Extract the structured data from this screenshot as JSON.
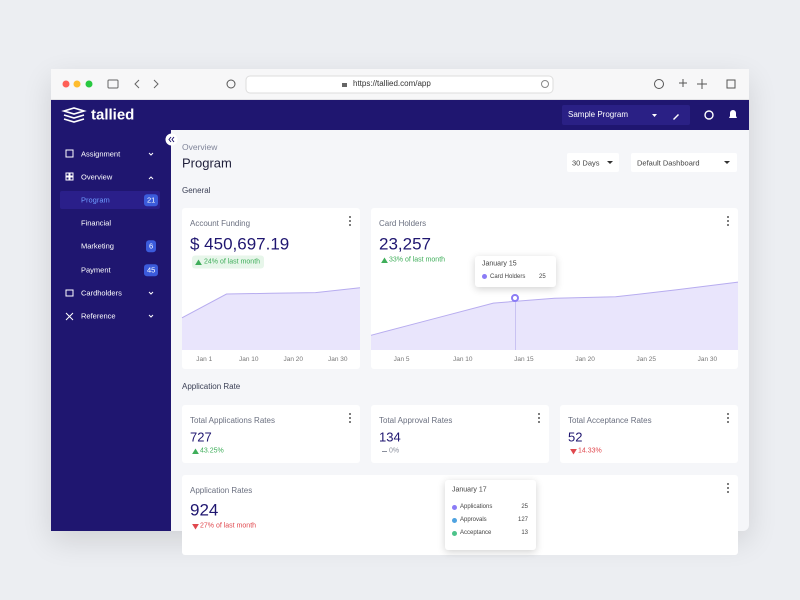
{
  "browser": {
    "url": "https://tallied.com/app"
  },
  "header": {
    "brand": "tallied",
    "program": "Sample Program"
  },
  "sidebar": {
    "items": [
      {
        "label": "Assignment"
      },
      {
        "label": "Overview"
      },
      {
        "label": "Program",
        "badge": 21
      },
      {
        "label": "Financial"
      },
      {
        "label": "Marketing",
        "badge": 6
      },
      {
        "label": "Payment",
        "badge": 45
      },
      {
        "label": "Cardholders"
      },
      {
        "label": "Reference"
      }
    ]
  },
  "page": {
    "breadcrumb": "Overview",
    "title": "Program",
    "range": "30 Days",
    "dashboard": "Default Dashboard"
  },
  "general": {
    "title": "General",
    "cards": [
      {
        "title": "Account Funding",
        "value": "$ 450,697.19",
        "change": "24% of last month",
        "trend": "up",
        "chart": {
          "type": "area",
          "x_labels": [
            "Jan 1",
            "Jan 10",
            "Jan 20",
            "Jan 30"
          ],
          "values": [
            46,
            80,
            81,
            82,
            89
          ],
          "ylim": [
            0,
            100
          ],
          "color": "#b7acef"
        }
      },
      {
        "title": "Card Holders",
        "value": "23,257",
        "change": "33% of last month",
        "trend": "up",
        "chart": {
          "type": "area",
          "x_labels": [
            "Jan 5",
            "Jan 10",
            "Jan 15",
            "Jan 20",
            "Jan 25",
            "Jan 30"
          ],
          "values": [
            21,
            44,
            67,
            74,
            76,
            86,
            97
          ],
          "ylim": [
            0,
            100
          ],
          "color": "#b7acef"
        },
        "tooltip": {
          "title": "January 15",
          "label": "Card Holders",
          "value": 25
        }
      }
    ]
  },
  "application_rate": {
    "title": "Application Rate",
    "cards": [
      {
        "title": "Total Applications Rates",
        "value": 727,
        "change": "43.25%",
        "trend": "up"
      },
      {
        "title": "Total Approval Rates",
        "value": 134,
        "change": "0%",
        "trend": "flat"
      },
      {
        "title": "Total Acceptance Rates",
        "value": 52,
        "change": "14.33%",
        "trend": "down"
      }
    ],
    "rates_card": {
      "title": "Application Rates",
      "value": 924,
      "change": "27% of last month",
      "trend": "down",
      "tooltip": {
        "title": "January 17",
        "items": [
          {
            "label": "Applications",
            "value": 25,
            "color": "#8b7cf6"
          },
          {
            "label": "Approvals",
            "value": 127,
            "color": "#4fa3e0"
          },
          {
            "label": "Acceptance",
            "value": 13,
            "color": "#4cc38a"
          }
        ]
      }
    }
  }
}
